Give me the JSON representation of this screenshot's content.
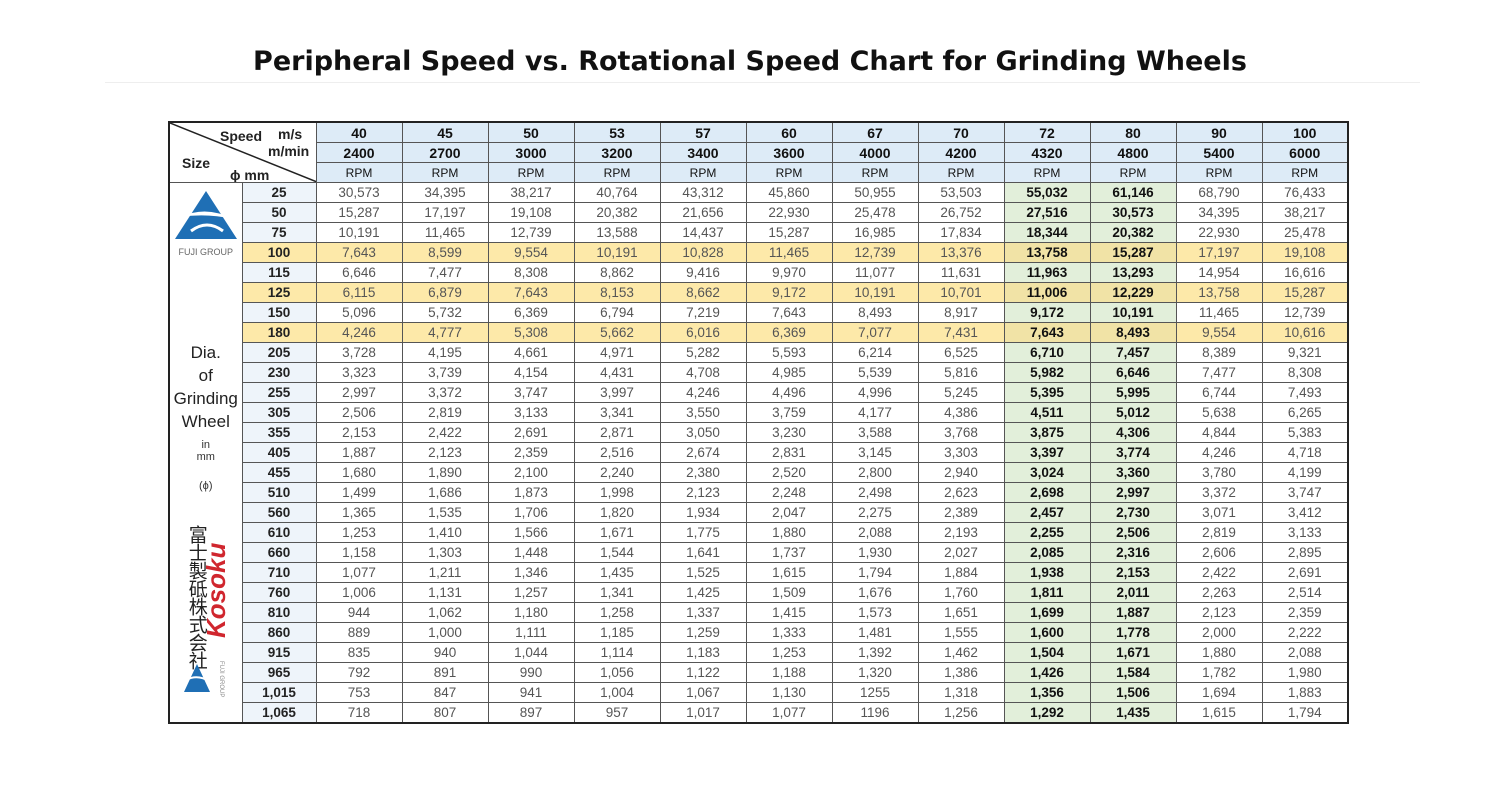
{
  "title": "Peripheral Speed vs. Rotational Speed Chart for Grinding Wheels",
  "table": {
    "header": {
      "speed": "Speed",
      "ms": "m/s",
      "mmin": "m/min",
      "size": "Size",
      "phi": "ϕ mm",
      "ms_values": [
        "40",
        "45",
        "50",
        "53",
        "57",
        "60",
        "67",
        "70",
        "72",
        "80",
        "90",
        "100"
      ],
      "mmin_values": [
        "2400",
        "2700",
        "3000",
        "3200",
        "3400",
        "3600",
        "4000",
        "4200",
        "4320",
        "4800",
        "5400",
        "6000"
      ],
      "units": [
        "RPM",
        "RPM",
        "RPM",
        "RPM",
        "RPM",
        "RPM",
        "RPM",
        "RPM",
        "RPM",
        "RPM",
        "RPM",
        "RPM"
      ]
    },
    "side": {
      "logo_text": "FUJI GROUP",
      "label": [
        "Dia.",
        "of",
        "Grinding",
        "Wheel"
      ],
      "unit": [
        "in",
        "mm"
      ],
      "phi": "(ϕ)",
      "company": "富士製砥株式会社",
      "brand": "Kosoku",
      "logo_small": "FUJI GROUP"
    },
    "rows": [
      {
        "size": "25",
        "values": [
          "30,573",
          "34,395",
          "38,217",
          "40,764",
          "43,312",
          "45,860",
          "50,955",
          "53,503",
          "55,032",
          "61,146",
          "68,790",
          "76,433"
        ]
      },
      {
        "size": "50",
        "values": [
          "15,287",
          "17,197",
          "19,108",
          "20,382",
          "21,656",
          "22,930",
          "25,478",
          "26,752",
          "27,516",
          "30,573",
          "34,395",
          "38,217"
        ]
      },
      {
        "size": "75",
        "values": [
          "10,191",
          "11,465",
          "12,739",
          "13,588",
          "14,437",
          "15,287",
          "16,985",
          "17,834",
          "18,344",
          "20,382",
          "22,930",
          "25,478"
        ]
      },
      {
        "size": "100",
        "values": [
          "7,643",
          "8,599",
          "9,554",
          "10,191",
          "10,828",
          "11,465",
          "12,739",
          "13,376",
          "13,758",
          "15,287",
          "17,197",
          "19,108"
        ]
      },
      {
        "size": "115",
        "values": [
          "6,646",
          "7,477",
          "8,308",
          "8,862",
          "9,416",
          "9,970",
          "11,077",
          "11,631",
          "11,963",
          "13,293",
          "14,954",
          "16,616"
        ]
      },
      {
        "size": "125",
        "values": [
          "6,115",
          "6,879",
          "7,643",
          "8,153",
          "8,662",
          "9,172",
          "10,191",
          "10,701",
          "11,006",
          "12,229",
          "13,758",
          "15,287"
        ]
      },
      {
        "size": "150",
        "values": [
          "5,096",
          "5,732",
          "6,369",
          "6,794",
          "7,219",
          "7,643",
          "8,493",
          "8,917",
          "9,172",
          "10,191",
          "11,465",
          "12,739"
        ]
      },
      {
        "size": "180",
        "values": [
          "4,246",
          "4,777",
          "5,308",
          "5,662",
          "6,016",
          "6,369",
          "7,077",
          "7,431",
          "7,643",
          "8,493",
          "9,554",
          "10,616"
        ]
      },
      {
        "size": "205",
        "values": [
          "3,728",
          "4,195",
          "4,661",
          "4,971",
          "5,282",
          "5,593",
          "6,214",
          "6,525",
          "6,710",
          "7,457",
          "8,389",
          "9,321"
        ]
      },
      {
        "size": "230",
        "values": [
          "3,323",
          "3,739",
          "4,154",
          "4,431",
          "4,708",
          "4,985",
          "5,539",
          "5,816",
          "5,982",
          "6,646",
          "7,477",
          "8,308"
        ]
      },
      {
        "size": "255",
        "values": [
          "2,997",
          "3,372",
          "3,747",
          "3,997",
          "4,246",
          "4,496",
          "4,996",
          "5,245",
          "5,395",
          "5,995",
          "6,744",
          "7,493"
        ]
      },
      {
        "size": "305",
        "values": [
          "2,506",
          "2,819",
          "3,133",
          "3,341",
          "3,550",
          "3,759",
          "4,177",
          "4,386",
          "4,511",
          "5,012",
          "5,638",
          "6,265"
        ]
      },
      {
        "size": "355",
        "values": [
          "2,153",
          "2,422",
          "2,691",
          "2,871",
          "3,050",
          "3,230",
          "3,588",
          "3,768",
          "3,875",
          "4,306",
          "4,844",
          "5,383"
        ]
      },
      {
        "size": "405",
        "values": [
          "1,887",
          "2,123",
          "2,359",
          "2,516",
          "2,674",
          "2,831",
          "3,145",
          "3,303",
          "3,397",
          "3,774",
          "4,246",
          "4,718"
        ]
      },
      {
        "size": "455",
        "values": [
          "1,680",
          "1,890",
          "2,100",
          "2,240",
          "2,380",
          "2,520",
          "2,800",
          "2,940",
          "3,024",
          "3,360",
          "3,780",
          "4,199"
        ]
      },
      {
        "size": "510",
        "values": [
          "1,499",
          "1,686",
          "1,873",
          "1,998",
          "2,123",
          "2,248",
          "2,498",
          "2,623",
          "2,698",
          "2,997",
          "3,372",
          "3,747"
        ]
      },
      {
        "size": "560",
        "values": [
          "1,365",
          "1,535",
          "1,706",
          "1,820",
          "1,934",
          "2,047",
          "2,275",
          "2,389",
          "2,457",
          "2,730",
          "3,071",
          "3,412"
        ]
      },
      {
        "size": "610",
        "values": [
          "1,253",
          "1,410",
          "1,566",
          "1,671",
          "1,775",
          "1,880",
          "2,088",
          "2,193",
          "2,255",
          "2,506",
          "2,819",
          "3,133"
        ]
      },
      {
        "size": "660",
        "values": [
          "1,158",
          "1,303",
          "1,448",
          "1,544",
          "1,641",
          "1,737",
          "1,930",
          "2,027",
          "2,085",
          "2,316",
          "2,606",
          "2,895"
        ]
      },
      {
        "size": "710",
        "values": [
          "1,077",
          "1,211",
          "1,346",
          "1,435",
          "1,525",
          "1,615",
          "1,794",
          "1,884",
          "1,938",
          "2,153",
          "2,422",
          "2,691"
        ]
      },
      {
        "size": "760",
        "values": [
          "1,006",
          "1,131",
          "1,257",
          "1,341",
          "1,425",
          "1,509",
          "1,676",
          "1,760",
          "1,811",
          "2,011",
          "2,263",
          "2,514"
        ]
      },
      {
        "size": "810",
        "values": [
          "944",
          "1,062",
          "1,180",
          "1,258",
          "1,337",
          "1,415",
          "1,573",
          "1,651",
          "1,699",
          "1,887",
          "2,123",
          "2,359"
        ]
      },
      {
        "size": "860",
        "values": [
          "889",
          "1,000",
          "1,111",
          "1,185",
          "1,259",
          "1,333",
          "1,481",
          "1,555",
          "1,600",
          "1,778",
          "2,000",
          "2,222"
        ]
      },
      {
        "size": "915",
        "values": [
          "835",
          "940",
          "1,044",
          "1,114",
          "1,183",
          "1,253",
          "1,392",
          "1,462",
          "1,504",
          "1,671",
          "1,880",
          "2,088"
        ]
      },
      {
        "size": "965",
        "values": [
          "792",
          "891",
          "990",
          "1,056",
          "1,122",
          "1,188",
          "1,320",
          "1,386",
          "1,426",
          "1,584",
          "1,782",
          "1,980"
        ]
      },
      {
        "size": "1,015",
        "values": [
          "753",
          "847",
          "941",
          "1,004",
          "1,067",
          "1,130",
          "1255",
          "1,318",
          "1,356",
          "1,506",
          "1,694",
          "1,883"
        ]
      },
      {
        "size": "1,065",
        "values": [
          "718",
          "807",
          "897",
          "957",
          "1,017",
          "1,077",
          "1196",
          "1,256",
          "1,292",
          "1,435",
          "1,615",
          "1,794"
        ]
      }
    ]
  }
}
